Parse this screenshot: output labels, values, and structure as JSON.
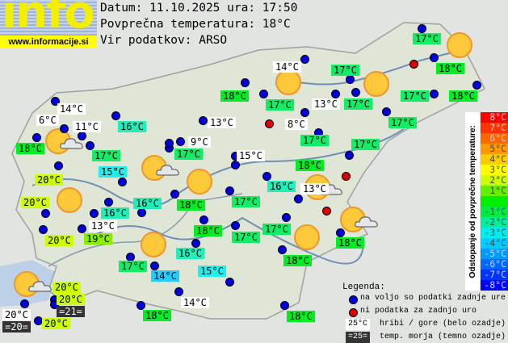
{
  "logo": {
    "text": "info",
    "url": "www.informacije.si"
  },
  "header": {
    "date_line": "Datum: 11.10.2025 ura: 17:50",
    "avg_temp_line": "Povprečna temperatura: 18°C",
    "source_line": "Vir podatkov: ARSO"
  },
  "map_labels": [
    {
      "t": "14°C",
      "color": "#ffffff"
    },
    {
      "t": "6°C",
      "color": "#ffffff"
    },
    {
      "t": "11°C",
      "color": "#ffffff"
    },
    {
      "t": "18°C",
      "color": "#00ee22"
    },
    {
      "t": "16°C",
      "color": "#22eebb"
    },
    {
      "t": "17°C",
      "color": "#11ee66"
    },
    {
      "t": "15°C",
      "color": "#22eeee"
    },
    {
      "t": "20°C",
      "color": "#ccff00"
    },
    {
      "t": "20°C",
      "color": "#ccff00"
    },
    {
      "t": "16°C",
      "color": "#22eebb"
    },
    {
      "t": "16°C",
      "color": "#22eebb"
    },
    {
      "t": "13°C",
      "color": "#ffffff"
    },
    {
      "t": "20°C",
      "color": "#ccff00"
    },
    {
      "t": "19°C",
      "color": "#88ee00"
    },
    {
      "t": "18°C",
      "color": "#00ee22"
    },
    {
      "t": "17°C",
      "color": "#11ee66"
    },
    {
      "t": "16°C",
      "color": "#22eebb"
    },
    {
      "t": "17°C",
      "color": "#11ee66"
    },
    {
      "t": "14°C",
      "color": "#22ccff"
    },
    {
      "t": "15°C",
      "color": "#22eeee"
    },
    {
      "t": "20°C",
      "color": "#ccff00"
    },
    {
      "t": "20°C",
      "color": "#ccff00"
    },
    {
      "t": "=21=",
      "color": "#333333"
    },
    {
      "t": "20°C",
      "color": "#ffffff"
    },
    {
      "t": "=20=",
      "color": "#333333"
    },
    {
      "t": "20°C",
      "color": "#ccff00"
    },
    {
      "t": "14°C",
      "color": "#ffffff"
    },
    {
      "t": "18°C",
      "color": "#00ee22"
    },
    {
      "t": "18°C",
      "color": "#00ee22"
    },
    {
      "t": "14°C",
      "color": "#ffffff"
    },
    {
      "t": "18°C",
      "color": "#00ee22"
    },
    {
      "t": "17°C",
      "color": "#11ee66"
    },
    {
      "t": "13°C",
      "color": "#ffffff"
    },
    {
      "t": "17°C",
      "color": "#11ee66"
    },
    {
      "t": "17°C",
      "color": "#11ee66"
    },
    {
      "t": "17°C",
      "color": "#11ee66"
    },
    {
      "t": "8°C",
      "color": "#ffffff"
    },
    {
      "t": "13°C",
      "color": "#ffffff"
    },
    {
      "t": "9°C",
      "color": "#ffffff"
    },
    {
      "t": "17°C",
      "color": "#11ee66"
    },
    {
      "t": "15°C",
      "color": "#ffffff"
    },
    {
      "t": "17°C",
      "color": "#11ee66"
    },
    {
      "t": "17°C",
      "color": "#11ee66"
    },
    {
      "t": "18°C",
      "color": "#00ee22"
    },
    {
      "t": "16°C",
      "color": "#22eebb"
    },
    {
      "t": "13°C",
      "color": "#ffffff"
    },
    {
      "t": "17°C",
      "color": "#11ee66"
    },
    {
      "t": "18°C",
      "color": "#00ee22"
    },
    {
      "t": "17°C",
      "color": "#11ee66"
    },
    {
      "t": "18°C",
      "color": "#00ee22"
    },
    {
      "t": "18°C",
      "color": "#00ee22"
    },
    {
      "t": "17°C",
      "color": "#11ee66"
    },
    {
      "t": "18°C",
      "color": "#00ee22"
    },
    {
      "t": "17°C",
      "color": "#11ee66"
    },
    {
      "t": "18°C",
      "color": "#00ee22"
    }
  ],
  "scale": {
    "title": "Odstopanje od povprečne temperature:",
    "rows": [
      {
        "t": "8°C",
        "color": "#ff0000"
      },
      {
        "t": "7°C",
        "color": "#ff3300"
      },
      {
        "t": "6°C",
        "color": "#ff6600"
      },
      {
        "t": "5°C",
        "color": "#ff9900"
      },
      {
        "t": "4°C",
        "color": "#ffcc00"
      },
      {
        "t": "3°C",
        "color": "#ffff00"
      },
      {
        "t": "2°C",
        "color": "#ccff00"
      },
      {
        "t": "1°C",
        "color": "#66ee00"
      },
      {
        "t": "",
        "color": "#00ee00"
      },
      {
        "t": "-1°C",
        "color": "#00ee44"
      },
      {
        "t": "-2°C",
        "color": "#00ee99"
      },
      {
        "t": "-3°C",
        "color": "#00eeee"
      },
      {
        "t": "-4°C",
        "color": "#00ccff"
      },
      {
        "t": "-5°C",
        "color": "#0099ff"
      },
      {
        "t": "-6°C",
        "color": "#0066ff"
      },
      {
        "t": "-7°C",
        "color": "#0033ff"
      },
      {
        "t": "-8°C",
        "color": "#0000ff"
      }
    ]
  },
  "legend": {
    "title": "Legenda:",
    "blue_dot": "na voljo so podatki zadnje ure",
    "red_dot": "ni podatka za zadnjo uro",
    "mountain_sample": "25°C",
    "mountain_text": "hribi / gore (belo ozadje)",
    "sea_sample": "=25=",
    "sea_text": "temp. morja (temno ozadje)"
  }
}
